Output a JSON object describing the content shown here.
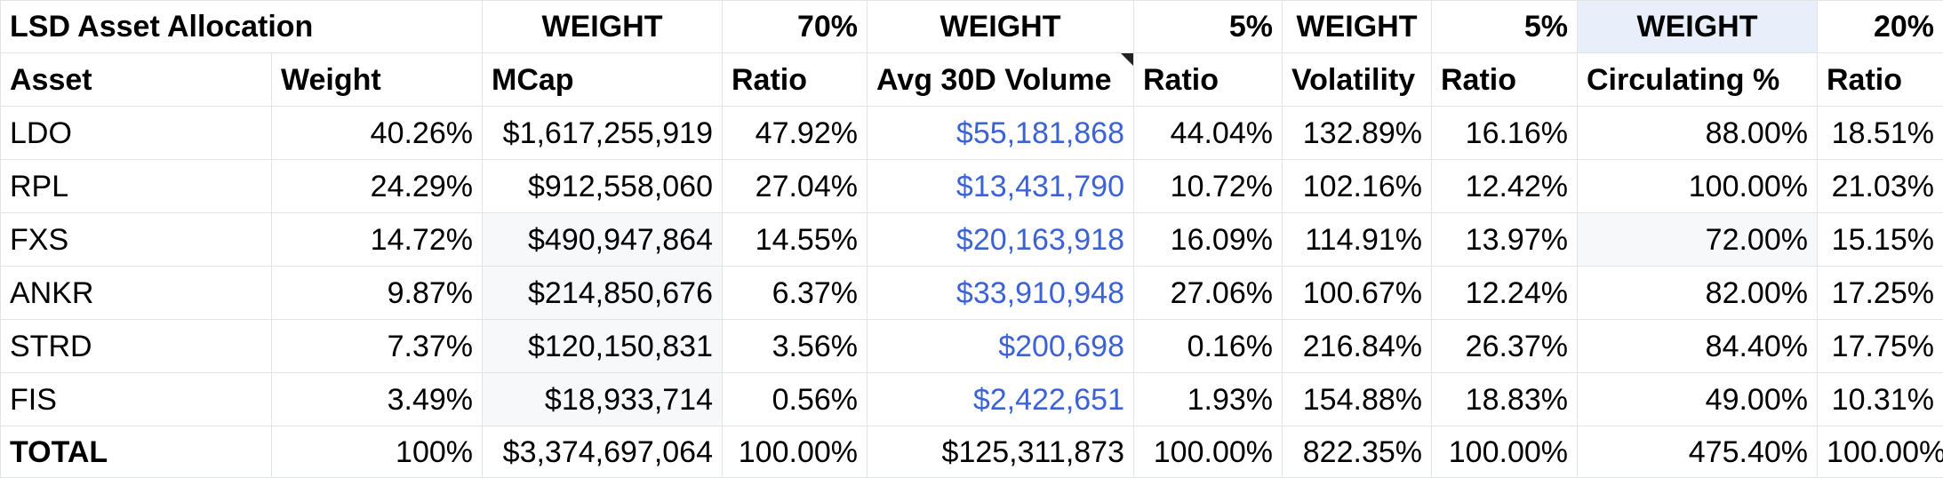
{
  "sheet": {
    "title": "LSD Asset Allocation",
    "groups": [
      {
        "label": "WEIGHT",
        "pct": "70%"
      },
      {
        "label": "WEIGHT",
        "pct": "5%"
      },
      {
        "label": "WEIGHT",
        "pct": "5%"
      },
      {
        "label": "WEIGHT",
        "pct": "20%"
      }
    ],
    "headers": [
      "Asset",
      "Weight",
      "MCap",
      "Ratio",
      "Avg 30D Volume",
      "Ratio",
      "Volatility",
      "Ratio",
      "Circulating %",
      "Ratio"
    ],
    "rows": [
      [
        "LDO",
        "40.26%",
        "$1,617,255,919",
        "47.92%",
        "$55,181,868",
        "44.04%",
        "132.89%",
        "16.16%",
        "88.00%",
        "18.51%"
      ],
      [
        "RPL",
        "24.29%",
        "$912,558,060",
        "27.04%",
        "$13,431,790",
        "10.72%",
        "102.16%",
        "12.42%",
        "100.00%",
        "21.03%"
      ],
      [
        "FXS",
        "14.72%",
        "$490,947,864",
        "14.55%",
        "$20,163,918",
        "16.09%",
        "114.91%",
        "13.97%",
        "72.00%",
        "15.15%"
      ],
      [
        "ANKR",
        "9.87%",
        "$214,850,676",
        "6.37%",
        "$33,910,948",
        "27.06%",
        "100.67%",
        "12.24%",
        "82.00%",
        "17.25%"
      ],
      [
        "STRD",
        "7.37%",
        "$120,150,831",
        "3.56%",
        "$200,698",
        "0.16%",
        "216.84%",
        "26.37%",
        "84.40%",
        "17.75%"
      ],
      [
        "FIS",
        "3.49%",
        "$18,933,714",
        "0.56%",
        "$2,422,651",
        "1.93%",
        "154.88%",
        "18.83%",
        "49.00%",
        "10.31%"
      ]
    ],
    "total": [
      "TOTAL",
      "100%",
      "$3,374,697,064",
      "100.00%",
      "$125,311,873",
      "100.00%",
      "822.35%",
      "100.00%",
      "475.40%",
      "100.00%"
    ]
  },
  "colors": {
    "link_blue": "#3c63d6",
    "grid_line": "#e2e3e3",
    "selected_header": "#e9eefb"
  }
}
